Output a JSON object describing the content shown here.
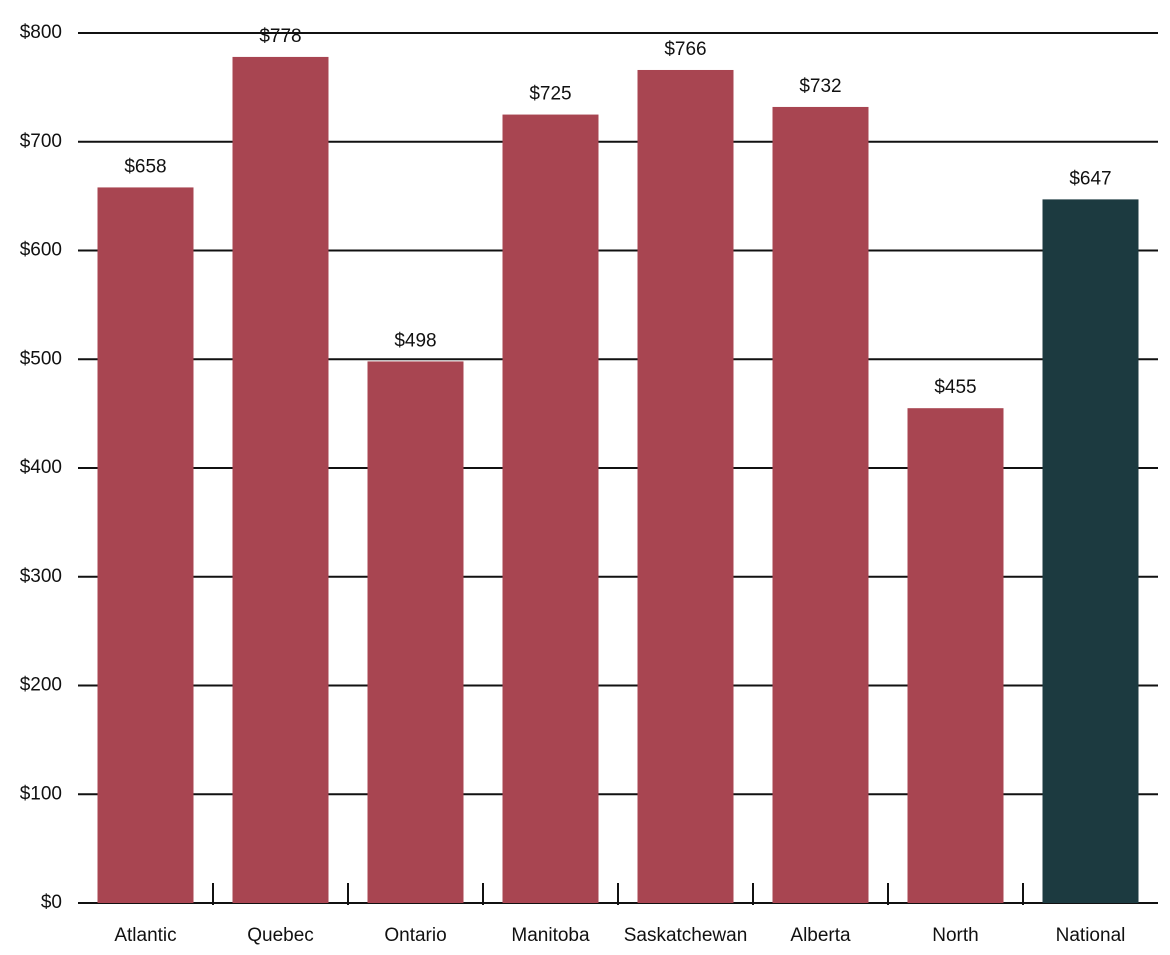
{
  "chart_data": {
    "type": "bar",
    "categories": [
      "Atlantic",
      "Quebec",
      "Ontario",
      "Manitoba",
      "Saskatchewan",
      "Alberta",
      "North",
      "National"
    ],
    "values": [
      658,
      778,
      498,
      725,
      766,
      732,
      455,
      647
    ],
    "value_labels": [
      "$658",
      "$778",
      "$498",
      "$725",
      "$766",
      "$732",
      "$455",
      "$647"
    ],
    "colors": [
      "#a84551",
      "#a84551",
      "#a84551",
      "#a84551",
      "#a84551",
      "#a84551",
      "#a84551",
      "#1c3a40"
    ],
    "ylim": [
      0,
      800
    ],
    "yticks": [
      {
        "value": 0,
        "label": "$0"
      },
      {
        "value": 100,
        "label": "$100"
      },
      {
        "value": 200,
        "label": "$200"
      },
      {
        "value": 300,
        "label": "$300"
      },
      {
        "value": 400,
        "label": "$400"
      },
      {
        "value": 500,
        "label": "$500"
      },
      {
        "value": 600,
        "label": "$600"
      },
      {
        "value": 700,
        "label": "$700"
      },
      {
        "value": 800,
        "label": "$800"
      }
    ],
    "grid": true
  }
}
